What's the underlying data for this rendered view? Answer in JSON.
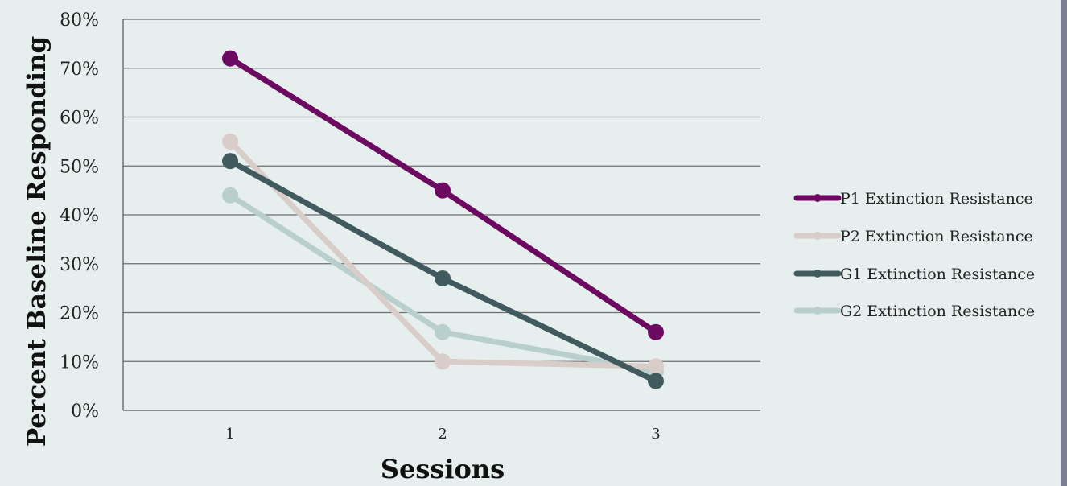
{
  "chart_data": {
    "type": "line",
    "categories": [
      "1",
      "2",
      "3"
    ],
    "series": [
      {
        "name": "P1 Extinction Resistance",
        "values": [
          0.72,
          0.45,
          0.16
        ],
        "color": "#6b0a60"
      },
      {
        "name": "P2 Extinction Resistance",
        "values": [
          0.55,
          0.1,
          0.09
        ],
        "color": "#d8cdc8"
      },
      {
        "name": "G1 Extinction Resistance",
        "values": [
          0.51,
          0.27,
          0.06
        ],
        "color": "#405a5d"
      },
      {
        "name": "G2 Extinction Resistance",
        "values": [
          0.44,
          0.16,
          0.08
        ],
        "color": "#b9cfcd"
      }
    ],
    "y_ticks": [
      "0%",
      "10%",
      "20%",
      "30%",
      "40%",
      "50%",
      "60%",
      "70%",
      "80%"
    ],
    "ylim": [
      0,
      0.8
    ],
    "xlabel": "Sessions",
    "ylabel": "Percent Baseline Responding",
    "grid": true,
    "legend_position": "right"
  }
}
